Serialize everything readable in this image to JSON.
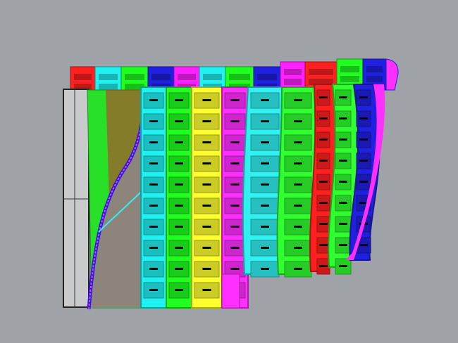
{
  "viewport": {
    "background": "#9fa3a8",
    "back_strip_colors": [
      "#ff2020",
      "#20f0f0",
      "#20ff20",
      "#2020e0",
      "#ff20ff",
      "#20f0f0",
      "#20ff20",
      "#2020e0",
      "#ff20ff",
      "#ff2020",
      "#20ff20",
      "#2020e0"
    ],
    "front_strip_colors": [
      "#20f0f0",
      "#20ff20",
      "#ffff30",
      "#ff30ff",
      "#30f0f0",
      "#30ff30",
      "#ff2020",
      "#30ff30",
      "#2020e0"
    ],
    "panel_label_color": "#000000"
  }
}
